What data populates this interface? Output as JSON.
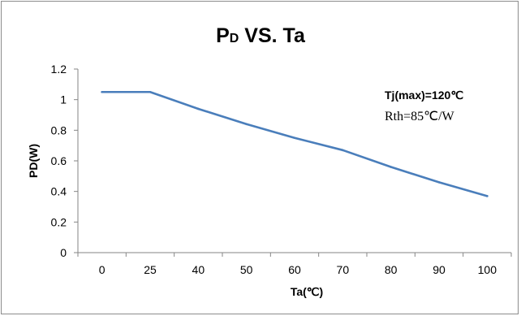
{
  "chart_data": {
    "type": "line",
    "title_main": "P",
    "title_sub": "D",
    "title_rest": " VS. Ta",
    "xlabel": "Ta(℃)",
    "ylabel": "PD(W)",
    "categories": [
      "0",
      "25",
      "40",
      "50",
      "60",
      "70",
      "80",
      "90",
      "100"
    ],
    "series": [
      {
        "values": [
          1.05,
          1.05,
          0.94,
          0.84,
          0.75,
          0.67,
          0.56,
          0.46,
          0.37
        ],
        "color": "#4a7ebb"
      }
    ],
    "ylim": [
      0,
      1.2
    ],
    "yticks": [
      "0",
      "0.2",
      "0.4",
      "0.6",
      "0.8",
      "1",
      "1.2"
    ],
    "annotations": [
      "Tj(max)=120℃",
      "Rth=85℃/W"
    ],
    "grid": false,
    "legend": "none"
  }
}
